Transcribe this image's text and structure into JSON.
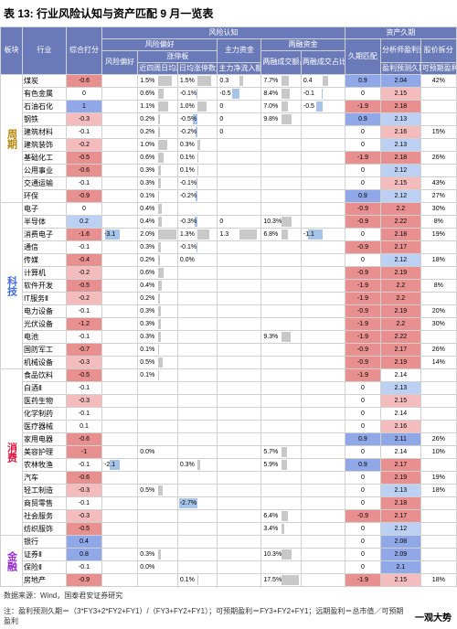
{
  "title": "表 13: 行业风险认知与资产匹配 9 月一览表",
  "source": "数据来源：Wind，国泰君安证券研究",
  "note": "注：盈利预测久期＝（3*FY3+2*FY2+FY1）/（FY3+FY2+FY1）；可预期盈利＝FY3+FY2+FY1；远期盈利＝总市值／可预期盈利",
  "logo": "一观大势",
  "headers": {
    "h1": [
      "板块",
      "行业",
      "综合打分",
      "风险认知",
      "资产久期"
    ],
    "h2": [
      "风险偏好",
      "主力资金",
      "两融资金"
    ],
    "h3": [
      "风险偏好",
      "涨停板",
      "主力净流入额占比较月均值变化(%)",
      "两融成交额占比",
      "两融成交占比相较上月均值变化",
      "久期匹配",
      "分析师盈利预测久期",
      "股价拆分"
    ],
    "h4": [
      "近四周日均涨停数量占比",
      "日均涨停数量占比相较月均值变化",
      "盈利预测久期",
      "可预期盈利市值占比"
    ]
  },
  "colors": {
    "header": "#6a7ab8",
    "posBar": "#f4a6a6",
    "negBar": "#a6c4e8",
    "neutralBar": "#c8c8c8",
    "heatRed": [
      "#d47878",
      "#e89898",
      "#f4bcbc"
    ],
    "heatBlue": [
      "#7896d4",
      "#98b4e8",
      "#bcd0f4"
    ]
  },
  "sectors": [
    {
      "name": "周期",
      "cls": "c1",
      "rows": [
        {
          "ind": "煤炭",
          "score": -0.6,
          "pref": null,
          "r4": "1.5%",
          "chg": "1.5%",
          "flow": 0.3,
          "rong": "7.7%",
          "rchg": 0.4,
          "dur": 0.9,
          "prof": 2.04,
          "pe": "42%"
        },
        {
          "ind": "有色金属",
          "score": 0.0,
          "pref": null,
          "r4": "0.6%",
          "chg": "-0.1%",
          "flow": -0.5,
          "rong": "8.4%",
          "rchg": -0.1,
          "dur": 0.0,
          "prof": 2.15,
          "pe": ""
        },
        {
          "ind": "石油石化",
          "score": 1.0,
          "pref": null,
          "r4": "1.1%",
          "chg": "1.0%",
          "flow": -0.0,
          "rong": "7.0%",
          "rchg": -0.5,
          "dur": -1.9,
          "prof": 2.18,
          "pe": ""
        },
        {
          "ind": "钢铁",
          "score": -0.3,
          "pref": null,
          "r4": "0.2%",
          "chg": "-0.5%",
          "flow": 0.0,
          "rong": "9.8%",
          "rchg": "",
          "dur": 0.9,
          "prof": 2.13,
          "pe": ""
        },
        {
          "ind": "建筑材料",
          "score": -0.1,
          "pref": null,
          "r4": "0.2%",
          "chg": "-0.2%",
          "flow": 0.0,
          "rong": "",
          "rchg": "",
          "dur": 0.0,
          "prof": 2.16,
          "pe": "15%"
        },
        {
          "ind": "建筑装饰",
          "score": -0.2,
          "pref": null,
          "r4": "1.0%",
          "chg": "0.3%",
          "flow": "",
          "rong": "",
          "rchg": "",
          "dur": 0.0,
          "prof": 2.13,
          "pe": ""
        },
        {
          "ind": "基础化工",
          "score": -0.5,
          "pref": null,
          "r4": "0.6%",
          "chg": "0.1%",
          "flow": "",
          "rong": "",
          "rchg": "",
          "dur": -1.9,
          "prof": 2.18,
          "pe": "26%"
        },
        {
          "ind": "公用事业",
          "score": -0.6,
          "pref": null,
          "r4": "0.3%",
          "chg": "0.1%",
          "flow": "",
          "rong": "",
          "rchg": "",
          "dur": 0.0,
          "prof": 2.12,
          "pe": ""
        },
        {
          "ind": "交通运输",
          "score": -0.1,
          "pref": null,
          "r4": "0.3%",
          "chg": "-0.1%",
          "flow": "",
          "rong": "",
          "rchg": "",
          "dur": 0.0,
          "prof": 2.15,
          "pe": "43%"
        },
        {
          "ind": "环保",
          "score": -0.9,
          "pref": null,
          "r4": "0.1%",
          "chg": "-0.2%",
          "flow": "",
          "rong": "",
          "rchg": "",
          "dur": 0.9,
          "prof": 2.12,
          "pe": "27%"
        }
      ]
    },
    {
      "name": "科技",
      "cls": "c2",
      "rows": [
        {
          "ind": "电子",
          "score": 0.0,
          "pref": null,
          "r4": "0.4%",
          "chg": "",
          "flow": "",
          "rong": "",
          "rchg": "",
          "dur": -0.9,
          "prof": 2.2,
          "pe": "30%"
        },
        {
          "ind": "半导体",
          "score": 0.2,
          "pref": null,
          "r4": "0.4%",
          "chg": "-0.3%",
          "flow": -0.0,
          "rong": "10.3%",
          "rchg": "",
          "dur": -0.9,
          "prof": 2.22,
          "pe": "8%"
        },
        {
          "ind": "消费电子",
          "score": -1.6,
          "pref": -3.1,
          "r4": "2.0%",
          "chg": "1.3%",
          "flow": 1.3,
          "rong": "6.8%",
          "rchg": -1.1,
          "dur": 0.0,
          "prof": 2.18,
          "pe": "19%"
        },
        {
          "ind": "通信",
          "score": -0.1,
          "pref": null,
          "r4": "0.3%",
          "chg": "-0.1%",
          "flow": "",
          "rong": "",
          "rchg": "",
          "dur": -0.9,
          "prof": 2.17,
          "pe": ""
        },
        {
          "ind": "传媒",
          "score": -0.4,
          "pref": null,
          "r4": "0.2%",
          "chg": "0.0%",
          "flow": "",
          "rong": "",
          "rchg": "",
          "dur": 0.0,
          "prof": 2.12,
          "pe": "18%"
        },
        {
          "ind": "计算机",
          "score": -0.2,
          "pref": null,
          "r4": "0.6%",
          "chg": "",
          "flow": "",
          "rong": "",
          "rchg": "",
          "dur": -0.9,
          "prof": 2.19,
          "pe": ""
        },
        {
          "ind": "软件开发",
          "score": -0.5,
          "pref": null,
          "r4": "0.4%",
          "chg": "",
          "flow": "",
          "rong": "",
          "rchg": "",
          "dur": -1.9,
          "prof": 2.2,
          "pe": "8%"
        },
        {
          "ind": "IT服务Ⅱ",
          "score": -0.2,
          "pref": null,
          "r4": "0.2%",
          "chg": "",
          "flow": "",
          "rong": "",
          "rchg": "",
          "dur": -1.9,
          "prof": 2.2,
          "pe": ""
        },
        {
          "ind": "电力设备",
          "score": -0.1,
          "pref": null,
          "r4": "0.3%",
          "chg": "",
          "flow": "",
          "rong": "",
          "rchg": "",
          "dur": -0.9,
          "prof": 2.19,
          "pe": "20%"
        },
        {
          "ind": "光伏设备",
          "score": -1.2,
          "pref": null,
          "r4": "0.3%",
          "chg": "",
          "flow": "",
          "rong": "",
          "rchg": "",
          "dur": -1.9,
          "prof": 2.2,
          "pe": "30%"
        },
        {
          "ind": "电池",
          "score": -0.1,
          "pref": null,
          "r4": "0.3%",
          "chg": "",
          "flow": "",
          "rong": "9.3%",
          "rchg": "",
          "dur": -1.9,
          "prof": 2.22,
          "pe": ""
        },
        {
          "ind": "国防军工",
          "score": -0.7,
          "pref": null,
          "r4": "0.1%",
          "chg": "",
          "flow": "",
          "rong": "",
          "rchg": "",
          "dur": -0.9,
          "prof": 2.17,
          "pe": "26%"
        },
        {
          "ind": "机械设备",
          "score": -0.3,
          "pref": null,
          "r4": "0.5%",
          "chg": "",
          "flow": "",
          "rong": "",
          "rchg": "",
          "dur": -0.9,
          "prof": 2.19,
          "pe": "14%"
        }
      ]
    },
    {
      "name": "消费",
      "cls": "c3",
      "rows": [
        {
          "ind": "食品饮料",
          "score": -0.5,
          "pref": null,
          "r4": "0.1%",
          "chg": "",
          "flow": "",
          "rong": "",
          "rchg": "",
          "dur": -1.9,
          "prof": 2.14,
          "pe": ""
        },
        {
          "ind": "白酒Ⅱ",
          "score": -0.1,
          "pref": null,
          "r4": "",
          "chg": "",
          "flow": "",
          "rong": "",
          "rchg": "",
          "dur": 0.0,
          "prof": 2.13,
          "pe": ""
        },
        {
          "ind": "医药生物",
          "score": -0.3,
          "pref": null,
          "r4": "",
          "chg": "",
          "flow": "",
          "rong": "",
          "rchg": "",
          "dur": 0.0,
          "prof": 2.15,
          "pe": ""
        },
        {
          "ind": "化学制药",
          "score": -0.1,
          "pref": null,
          "r4": "",
          "chg": "",
          "flow": "",
          "rong": "",
          "rchg": "",
          "dur": 0.0,
          "prof": 2.14,
          "pe": ""
        },
        {
          "ind": "医疗器械",
          "score": 0.1,
          "pref": null,
          "r4": "",
          "chg": "",
          "flow": "",
          "rong": "",
          "rchg": "",
          "dur": 0.0,
          "prof": 2.16,
          "pe": ""
        },
        {
          "ind": "家用电器",
          "score": -0.6,
          "pref": null,
          "r4": "",
          "chg": "",
          "flow": "",
          "rong": "",
          "rchg": "",
          "dur": 0.9,
          "prof": 2.11,
          "pe": "26%"
        },
        {
          "ind": "美容护理",
          "score": -1.0,
          "pref": null,
          "r4": "0.0%",
          "chg": "",
          "flow": "",
          "rong": "5.7%",
          "rchg": "",
          "dur": 0.0,
          "prof": 2.14,
          "pe": "10%"
        },
        {
          "ind": "农林牧渔",
          "score": -0.1,
          "pref": -2.1,
          "r4": "",
          "chg": "0.3%",
          "flow": "",
          "rong": "5.9%",
          "rchg": "",
          "dur": 0.9,
          "prof": 2.17,
          "pe": ""
        },
        {
          "ind": "汽车",
          "score": -0.6,
          "pref": null,
          "r4": "",
          "chg": "",
          "flow": "",
          "rong": "",
          "rchg": "",
          "dur": 0.0,
          "prof": 2.19,
          "pe": "19%"
        },
        {
          "ind": "轻工制造",
          "score": -0.3,
          "pref": null,
          "r4": "0.5%",
          "chg": "",
          "flow": "",
          "rong": "",
          "rchg": "",
          "dur": 0.0,
          "prof": 2.13,
          "pe": "18%"
        },
        {
          "ind": "商贸零售",
          "score": -0.1,
          "pref": null,
          "r4": "",
          "chg": "-2.7%",
          "flow": "",
          "rong": "",
          "rchg": "",
          "dur": 0.0,
          "prof": 2.18,
          "pe": ""
        },
        {
          "ind": "社会服务",
          "score": -0.3,
          "pref": null,
          "r4": "",
          "chg": "",
          "flow": "",
          "rong": "6.4%",
          "rchg": "",
          "dur": -0.9,
          "prof": 2.17,
          "pe": ""
        },
        {
          "ind": "纺织服饰",
          "score": -0.5,
          "pref": null,
          "r4": "",
          "chg": "",
          "flow": "",
          "rong": "3.4%",
          "rchg": "",
          "dur": 0.0,
          "prof": 2.12,
          "pe": ""
        }
      ]
    },
    {
      "name": "金融",
      "cls": "c4",
      "rows": [
        {
          "ind": "银行",
          "score": 0.4,
          "pref": null,
          "r4": "",
          "chg": "",
          "flow": "",
          "rong": "",
          "rchg": "",
          "dur": 0.0,
          "prof": 2.08,
          "pe": ""
        },
        {
          "ind": "证券Ⅱ",
          "score": 0.8,
          "pref": null,
          "r4": "0.3%",
          "chg": "",
          "flow": "",
          "rong": "10.3%",
          "rchg": "",
          "dur": 0.0,
          "prof": 2.09,
          "pe": ""
        },
        {
          "ind": "保险Ⅱ",
          "score": -0.1,
          "pref": null,
          "r4": "0.0%",
          "chg": "",
          "flow": "",
          "rong": "",
          "rchg": "",
          "dur": 0.0,
          "prof": 2.1,
          "pe": ""
        },
        {
          "ind": "房地产",
          "score": -0.9,
          "pref": null,
          "r4": "",
          "chg": "0.1%",
          "flow": "",
          "rong": "17.5%",
          "rchg": "",
          "dur": -1.9,
          "prof": 2.15,
          "pe": "18%"
        }
      ]
    }
  ]
}
